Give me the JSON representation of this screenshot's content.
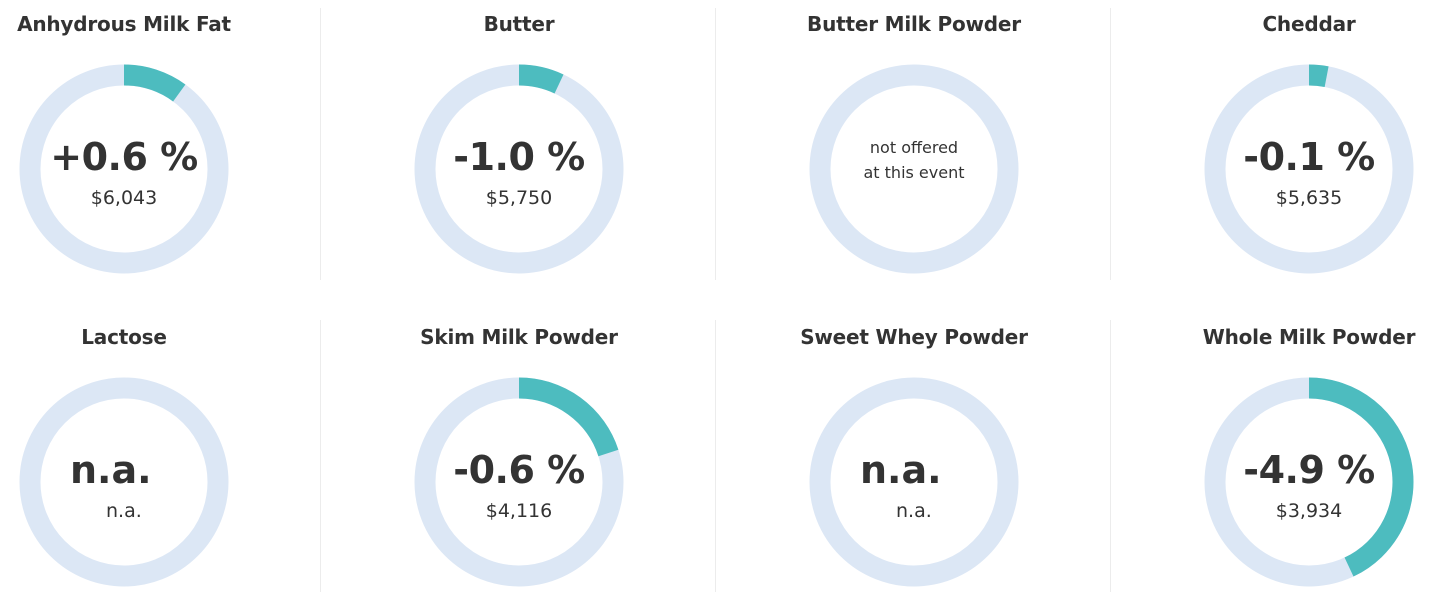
{
  "colors": {
    "ring_background": "#dce7f5",
    "ring_fill": "#4dbcbf",
    "text": "#333333"
  },
  "chart_data": [
    {
      "type": "pie",
      "title": "Anhydrous Milk Fat",
      "change_label": "+0.6 %",
      "price_label": "$6,043",
      "fill_fraction": 0.1,
      "status": "value"
    },
    {
      "type": "pie",
      "title": "Butter",
      "change_label": "-1.0 %",
      "price_label": "$5,750",
      "fill_fraction": 0.07,
      "status": "value"
    },
    {
      "type": "pie",
      "title": "Butter Milk Powder",
      "message": "not offered at this event",
      "message_line1": "not offered",
      "message_line2": "at this event",
      "fill_fraction": 0,
      "status": "not_offered"
    },
    {
      "type": "pie",
      "title": "Cheddar",
      "change_label": "-0.1 %",
      "price_label": "$5,635",
      "fill_fraction": 0.03,
      "status": "value"
    },
    {
      "type": "pie",
      "title": "Lactose",
      "change_label": "n.a.",
      "price_label": "n.a.",
      "fill_fraction": 0,
      "status": "na"
    },
    {
      "type": "pie",
      "title": "Skim Milk Powder",
      "change_label": "-0.6 %",
      "price_label": "$4,116",
      "fill_fraction": 0.2,
      "status": "value"
    },
    {
      "type": "pie",
      "title": "Sweet Whey Powder",
      "change_label": "n.a.",
      "price_label": "n.a.",
      "fill_fraction": 0,
      "status": "na"
    },
    {
      "type": "pie",
      "title": "Whole Milk Powder",
      "change_label": "-4.9 %",
      "price_label": "$3,934",
      "fill_fraction": 0.43,
      "status": "value"
    }
  ]
}
